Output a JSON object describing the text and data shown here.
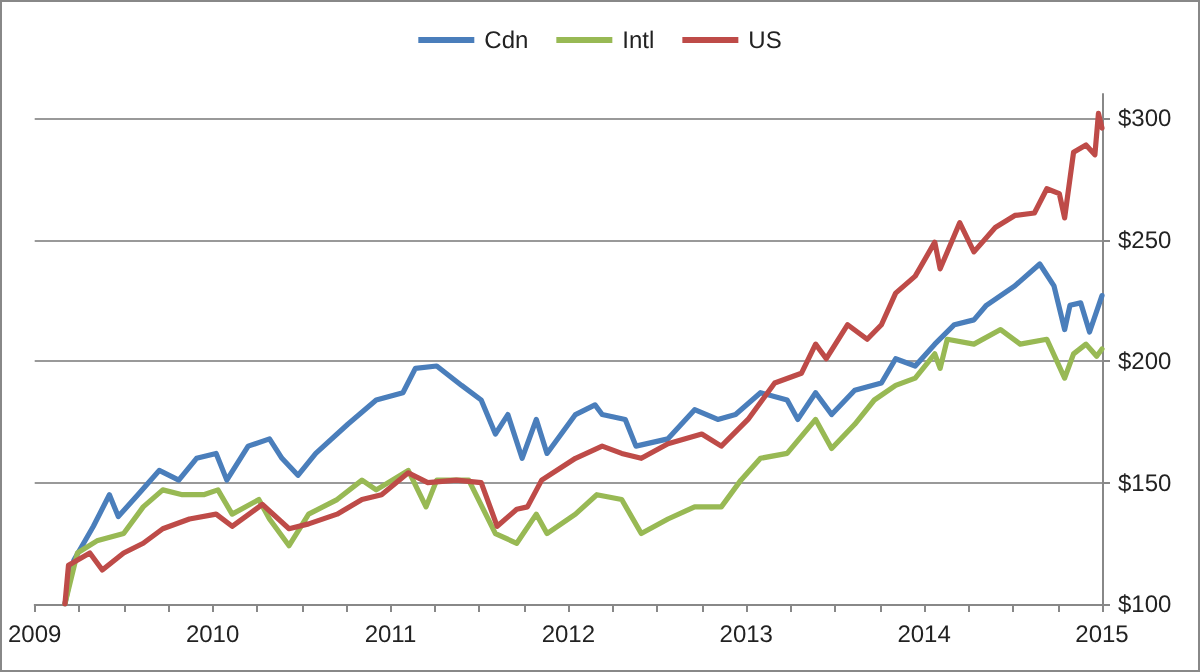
{
  "chart_data": {
    "type": "line",
    "legend": "top",
    "grid": "y",
    "marker": "none",
    "line_style": "solid",
    "xlim": [
      2009,
      2015
    ],
    "ylim": [
      100,
      310
    ],
    "xticks": [
      {
        "value": 2009,
        "label": "2009"
      },
      {
        "value": 2009.25,
        "label": null
      },
      {
        "value": 2009.5,
        "label": null
      },
      {
        "value": 2009.75,
        "label": null
      },
      {
        "value": 2010,
        "label": "2010"
      },
      {
        "value": 2010.25,
        "label": null
      },
      {
        "value": 2010.5,
        "label": null
      },
      {
        "value": 2010.75,
        "label": null
      },
      {
        "value": 2011,
        "label": "2011"
      },
      {
        "value": 2011.25,
        "label": null
      },
      {
        "value": 2011.5,
        "label": null
      },
      {
        "value": 2011.75,
        "label": null
      },
      {
        "value": 2012,
        "label": "2012"
      },
      {
        "value": 2012.25,
        "label": null
      },
      {
        "value": 2012.5,
        "label": null
      },
      {
        "value": 2012.75,
        "label": null
      },
      {
        "value": 2013,
        "label": "2013"
      },
      {
        "value": 2013.25,
        "label": null
      },
      {
        "value": 2013.5,
        "label": null
      },
      {
        "value": 2013.75,
        "label": null
      },
      {
        "value": 2014,
        "label": "2014"
      },
      {
        "value": 2014.25,
        "label": null
      },
      {
        "value": 2014.5,
        "label": null
      },
      {
        "value": 2014.75,
        "label": null
      },
      {
        "value": 2015,
        "label": "2015"
      }
    ],
    "yticks": [
      {
        "value": 100,
        "label": "$100"
      },
      {
        "value": 150,
        "label": "$150"
      },
      {
        "value": 200,
        "label": "$200"
      },
      {
        "value": 250,
        "label": "$250"
      },
      {
        "value": 300,
        "label": "$300"
      }
    ],
    "series": [
      {
        "name": "Cdn",
        "color": "#4a7ebb",
        "x": [
          2009.17,
          2009.22,
          2009.33,
          2009.42,
          2009.47,
          2009.58,
          2009.7,
          2009.81,
          2009.91,
          2010.02,
          2010.08,
          2010.2,
          2010.32,
          2010.39,
          2010.48,
          2010.58,
          2010.76,
          2010.92,
          2011.07,
          2011.14,
          2011.26,
          2011.4,
          2011.51,
          2011.59,
          2011.66,
          2011.74,
          2011.82,
          2011.88,
          2012.04,
          2012.15,
          2012.19,
          2012.32,
          2012.38,
          2012.56,
          2012.71,
          2012.84,
          2012.94,
          2013.08,
          2013.23,
          2013.29,
          2013.39,
          2013.48,
          2013.61,
          2013.76,
          2013.84,
          2013.95,
          2014.06,
          2014.17,
          2014.28,
          2014.35,
          2014.51,
          2014.65,
          2014.73,
          2014.79,
          2014.82,
          2014.88,
          2014.93,
          2015.0
        ],
        "values": [
          100,
          118,
          132,
          145,
          136,
          145,
          155,
          151,
          160,
          162,
          151,
          165,
          168,
          160,
          153,
          162,
          174,
          184,
          187,
          197,
          198,
          190,
          184,
          170,
          178,
          160,
          176,
          162,
          178,
          182,
          178,
          176,
          165,
          168,
          180,
          176,
          178,
          187,
          184,
          176,
          187,
          178,
          188,
          191,
          201,
          198,
          207,
          215,
          217,
          223,
          231,
          240,
          231,
          213,
          223,
          224,
          212,
          227
        ]
      },
      {
        "name": "Intl",
        "color": "#98b954",
        "x": [
          2009.17,
          2009.24,
          2009.35,
          2009.5,
          2009.61,
          2009.72,
          2009.83,
          2009.95,
          2010.03,
          2010.11,
          2010.26,
          2010.32,
          2010.43,
          2010.54,
          2010.7,
          2010.84,
          2010.92,
          2011.1,
          2011.2,
          2011.26,
          2011.44,
          2011.59,
          2011.71,
          2011.82,
          2011.88,
          2012.04,
          2012.16,
          2012.3,
          2012.41,
          2012.56,
          2012.71,
          2012.86,
          2012.97,
          2013.08,
          2013.23,
          2013.39,
          2013.48,
          2013.61,
          2013.72,
          2013.84,
          2013.95,
          2014.06,
          2014.09,
          2014.13,
          2014.28,
          2014.43,
          2014.54,
          2014.69,
          2014.79,
          2014.84,
          2014.91,
          2014.97,
          2015.0
        ],
        "values": [
          100,
          121,
          126,
          129,
          140,
          147,
          145,
          145,
          147,
          137,
          143,
          135,
          124,
          137,
          143,
          151,
          147,
          155,
          140,
          151,
          151,
          129,
          125,
          137,
          129,
          137,
          145,
          143,
          129,
          135,
          140,
          140,
          151,
          160,
          162,
          176,
          164,
          174,
          184,
          190,
          193,
          203,
          197,
          209,
          207,
          213,
          207,
          209,
          193,
          203,
          207,
          202,
          205
        ]
      },
      {
        "name": "US",
        "color": "#be4b48",
        "x": [
          2009.17,
          2009.19,
          2009.31,
          2009.38,
          2009.5,
          2009.61,
          2009.72,
          2009.87,
          2010.02,
          2010.11,
          2010.28,
          2010.43,
          2010.54,
          2010.7,
          2010.84,
          2010.95,
          2011.1,
          2011.21,
          2011.37,
          2011.51,
          2011.6,
          2011.71,
          2011.77,
          2011.85,
          2012.04,
          2012.19,
          2012.3,
          2012.41,
          2012.56,
          2012.75,
          2012.86,
          2013.01,
          2013.16,
          2013.31,
          2013.39,
          2013.45,
          2013.57,
          2013.68,
          2013.76,
          2013.84,
          2013.95,
          2014.06,
          2014.09,
          2014.2,
          2014.28,
          2014.4,
          2014.51,
          2014.62,
          2014.69,
          2014.76,
          2014.79,
          2014.84,
          2014.91,
          2014.96,
          2014.98,
          2015.0
        ],
        "values": [
          100,
          116,
          121,
          114,
          121,
          125,
          131,
          135,
          137,
          132,
          141,
          131,
          133,
          137,
          143,
          145,
          154,
          150,
          151,
          150,
          132,
          139,
          140,
          151,
          160,
          165,
          162,
          160,
          166,
          170,
          165,
          176,
          191,
          195,
          207,
          201,
          215,
          209,
          215,
          228,
          235,
          249,
          238,
          257,
          245,
          255,
          260,
          261,
          271,
          269,
          259,
          286,
          289,
          285,
          302,
          296
        ]
      }
    ]
  }
}
